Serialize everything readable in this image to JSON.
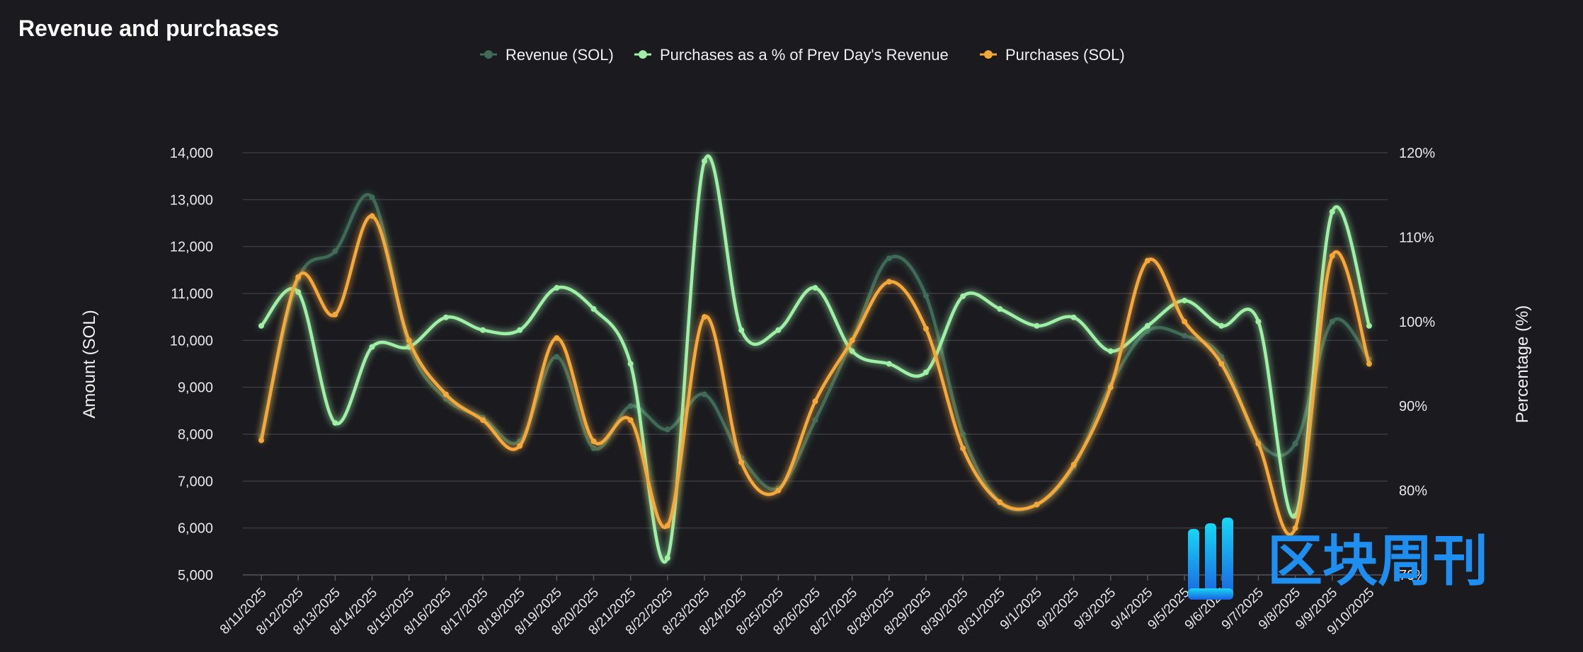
{
  "chart_data": {
    "type": "line",
    "title": "Revenue and purchases",
    "ylabel": "Amount (SOL)",
    "y2label": "Percentage (%)",
    "ylim": [
      5000,
      14000
    ],
    "y2lim": [
      70,
      120
    ],
    "yticks": [
      "5,000",
      "6,000",
      "7,000",
      "8,000",
      "9,000",
      "10,000",
      "11,000",
      "12,000",
      "13,000",
      "14,000"
    ],
    "y2ticks": [
      "70%",
      "80%",
      "90%",
      "100%",
      "110%",
      "120%"
    ],
    "legend_position": "top-center",
    "grid": true,
    "categories": [
      "8/11/2025",
      "8/12/2025",
      "8/13/2025",
      "8/14/2025",
      "8/15/2025",
      "8/16/2025",
      "8/17/2025",
      "8/18/2025",
      "8/19/2025",
      "8/20/2025",
      "8/21/2025",
      "8/22/2025",
      "8/23/2025",
      "8/24/2025",
      "8/25/2025",
      "8/26/2025",
      "8/27/2025",
      "8/28/2025",
      "8/29/2025",
      "8/30/2025",
      "8/31/2025",
      "9/1/2025",
      "9/2/2025",
      "9/3/2025",
      "9/4/2025",
      "9/5/2025",
      "9/6/2025",
      "9/7/2025",
      "9/8/2025",
      "9/9/2025",
      "9/10/2025"
    ],
    "series": [
      {
        "name": "Revenue (SOL)",
        "axis": "left",
        "color": "#3f6b58",
        "values": [
          7950,
          11300,
          11900,
          13050,
          9900,
          8750,
          8350,
          7850,
          9650,
          7700,
          8600,
          8100,
          8850,
          7500,
          6850,
          8300,
          10000,
          11750,
          10950,
          8000,
          6550,
          6500,
          7300,
          9050,
          10200,
          10100,
          9650,
          7850,
          7800,
          10400,
          9600
        ]
      },
      {
        "name": "Purchases as a % of Prev Day's Revenue",
        "axis": "right",
        "color": "#9ef0a6",
        "values": [
          99.5,
          103.5,
          88,
          97,
          97,
          100.5,
          99,
          99,
          104,
          101.5,
          95,
          72,
          119,
          99,
          99,
          104,
          96.5,
          95,
          94,
          103,
          101.5,
          99.5,
          100.5,
          96.5,
          99.5,
          102.5,
          99.5,
          100,
          77,
          113,
          99.5
        ]
      },
      {
        "name": "Purchases (SOL)",
        "axis": "left",
        "color": "#f5a83a",
        "values": [
          7870,
          11350,
          10550,
          12650,
          10000,
          8850,
          8300,
          7750,
          10050,
          7850,
          8300,
          6050,
          10500,
          7400,
          6800,
          8700,
          10000,
          11250,
          10250,
          7700,
          6550,
          6500,
          7350,
          9000,
          11700,
          10400,
          9500,
          7800,
          6000,
          11800,
          9500
        ]
      }
    ]
  },
  "watermark": {
    "text": "区块周刊"
  }
}
